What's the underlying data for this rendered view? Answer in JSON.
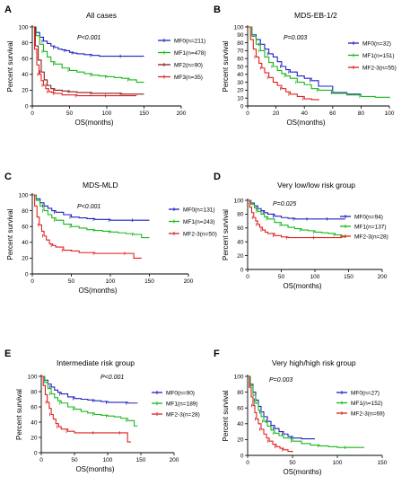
{
  "chart_data": [
    {
      "type": "line",
      "panel": "A",
      "title": "All cases",
      "p_value": "P<0.001",
      "xlabel": "OS(months)",
      "ylabel": "Percent survival",
      "xlim": [
        0,
        200
      ],
      "ylim": [
        0,
        100
      ],
      "xticks": [
        0,
        50,
        100,
        150,
        200
      ],
      "yticks": [
        0,
        20,
        40,
        60,
        80,
        100
      ],
      "grid": false,
      "legend_position": "right",
      "series": [
        {
          "name": "MF0(n=211)",
          "color": "#2020c0",
          "x": [
            0,
            5,
            10,
            15,
            20,
            25,
            30,
            35,
            40,
            45,
            50,
            55,
            60,
            70,
            80,
            90,
            100,
            120,
            140,
            150
          ],
          "y": [
            100,
            93,
            87,
            82,
            79,
            76,
            74,
            72,
            71,
            70,
            68,
            67,
            66,
            65,
            64,
            63,
            63,
            63,
            63,
            63
          ]
        },
        {
          "name": "MF1(n=478)",
          "color": "#18b818",
          "x": [
            0,
            5,
            10,
            15,
            20,
            25,
            30,
            40,
            50,
            60,
            70,
            80,
            90,
            100,
            110,
            120,
            130,
            140,
            150
          ],
          "y": [
            100,
            89,
            78,
            69,
            62,
            56,
            53,
            48,
            45,
            43,
            41,
            39,
            38,
            37,
            36,
            35,
            33,
            30,
            30
          ]
        },
        {
          "name": "MF2(n=90)",
          "color": "#8b1a1a",
          "x": [
            0,
            4,
            8,
            12,
            16,
            20,
            25,
            30,
            40,
            50,
            60,
            80,
            100,
            120,
            140,
            150
          ],
          "y": [
            100,
            76,
            58,
            43,
            33,
            26,
            22,
            20,
            19,
            18,
            17,
            16,
            16,
            15,
            15,
            15
          ]
        },
        {
          "name": "MF3(n=35)",
          "color": "#e02020",
          "x": [
            0,
            3,
            6,
            9,
            12,
            15,
            18,
            22,
            26,
            30,
            40,
            60,
            80,
            100,
            120,
            140
          ],
          "y": [
            100,
            72,
            52,
            40,
            32,
            26,
            22,
            18,
            17,
            16,
            14,
            13,
            13,
            13,
            13,
            13
          ]
        }
      ]
    },
    {
      "type": "line",
      "panel": "B",
      "title": "MDS-EB-1/2",
      "p_value": "P=0.003",
      "xlabel": "OS(months)",
      "ylabel": "Percent survival",
      "xlim": [
        0,
        100
      ],
      "ylim": [
        0,
        100
      ],
      "xticks": [
        0,
        20,
        40,
        60,
        80,
        100
      ],
      "yticks": [
        0,
        10,
        20,
        30,
        40,
        50,
        60,
        70,
        80,
        90,
        100
      ],
      "grid": false,
      "legend_position": "right",
      "series": [
        {
          "name": "MF0(n=32)",
          "color": "#2020c0",
          "x": [
            0,
            3,
            6,
            9,
            12,
            15,
            18,
            21,
            24,
            27,
            30,
            35,
            40,
            45,
            50,
            60,
            70,
            80
          ],
          "y": [
            100,
            90,
            84,
            78,
            72,
            66,
            62,
            56,
            50,
            46,
            43,
            38,
            35,
            32,
            25,
            17,
            15,
            15
          ]
        },
        {
          "name": "MF1(n=151)",
          "color": "#18b818",
          "x": [
            0,
            3,
            6,
            9,
            12,
            15,
            18,
            21,
            24,
            27,
            30,
            35,
            40,
            45,
            50,
            60,
            70,
            80,
            90,
            100
          ],
          "y": [
            100,
            88,
            78,
            70,
            62,
            55,
            50,
            45,
            41,
            38,
            35,
            30,
            27,
            22,
            20,
            16,
            14,
            12,
            11,
            10
          ]
        },
        {
          "name": "MF2-3(n=55)",
          "color": "#e02020",
          "x": [
            0,
            2,
            4,
            6,
            8,
            10,
            12,
            15,
            18,
            21,
            24,
            27,
            30,
            35,
            40,
            45,
            50
          ],
          "y": [
            100,
            84,
            72,
            62,
            54,
            48,
            42,
            36,
            30,
            26,
            22,
            18,
            15,
            12,
            9,
            8,
            7
          ]
        }
      ]
    },
    {
      "type": "line",
      "panel": "C",
      "title": "MDS-MLD",
      "p_value": "P<0.001",
      "xlabel": "OS(months)",
      "ylabel": "Percent survival",
      "xlim": [
        0,
        200
      ],
      "ylim": [
        0,
        100
      ],
      "xticks": [
        0,
        50,
        100,
        150,
        200
      ],
      "yticks": [
        0,
        20,
        40,
        60,
        80,
        100
      ],
      "grid": false,
      "legend_position": "right",
      "series": [
        {
          "name": "MF0(n=131)",
          "color": "#2020c0",
          "x": [
            0,
            5,
            10,
            15,
            20,
            25,
            30,
            40,
            50,
            60,
            70,
            80,
            90,
            100,
            110,
            120,
            130,
            140,
            150
          ],
          "y": [
            100,
            95,
            90,
            86,
            83,
            80,
            78,
            75,
            72,
            71,
            70,
            69,
            69,
            68,
            68,
            68,
            68,
            68,
            68
          ]
        },
        {
          "name": "MF1(n=243)",
          "color": "#18b818",
          "x": [
            0,
            5,
            10,
            15,
            20,
            25,
            30,
            40,
            50,
            60,
            70,
            80,
            90,
            100,
            110,
            120,
            130,
            140,
            150
          ],
          "y": [
            100,
            93,
            86,
            80,
            75,
            71,
            68,
            63,
            60,
            58,
            56,
            55,
            54,
            53,
            52,
            51,
            50,
            46,
            46
          ]
        },
        {
          "name": "MF2-3(n=50)",
          "color": "#e02020",
          "x": [
            0,
            3,
            6,
            9,
            12,
            15,
            18,
            22,
            26,
            30,
            40,
            50,
            60,
            80,
            100,
            120,
            130,
            140
          ],
          "y": [
            100,
            86,
            72,
            62,
            54,
            48,
            43,
            38,
            36,
            34,
            30,
            29,
            27,
            26,
            26,
            26,
            20,
            20
          ]
        }
      ]
    },
    {
      "type": "line",
      "panel": "D",
      "title": "Very low/low risk group",
      "p_value": "P=0.025",
      "xlabel": "OS(months)",
      "ylabel": "Percent survival",
      "xlim": [
        0,
        200
      ],
      "ylim": [
        0,
        100
      ],
      "xticks": [
        0,
        50,
        100,
        150,
        200
      ],
      "yticks": [
        0,
        20,
        40,
        60,
        80,
        100
      ],
      "grid": false,
      "legend_position": "right",
      "series": [
        {
          "name": "MF0(n=94)",
          "color": "#2020c0",
          "x": [
            0,
            5,
            10,
            15,
            20,
            25,
            30,
            40,
            50,
            60,
            70,
            80,
            90,
            100,
            120,
            140,
            145
          ],
          "y": [
            100,
            96,
            92,
            88,
            85,
            82,
            80,
            77,
            75,
            74,
            73,
            73,
            73,
            73,
            73,
            73,
            73
          ]
        },
        {
          "name": "MF1(n=137)",
          "color": "#18b818",
          "x": [
            0,
            5,
            10,
            15,
            20,
            25,
            30,
            40,
            50,
            60,
            70,
            80,
            90,
            100,
            110,
            120,
            130,
            140,
            145
          ],
          "y": [
            100,
            94,
            89,
            84,
            80,
            76,
            73,
            68,
            64,
            61,
            59,
            57,
            56,
            54,
            53,
            52,
            50,
            47,
            47
          ]
        },
        {
          "name": "MF2-3(n=28)",
          "color": "#e02020",
          "x": [
            0,
            3,
            6,
            9,
            12,
            15,
            18,
            22,
            26,
            30,
            40,
            50,
            60,
            80,
            100,
            120,
            140
          ],
          "y": [
            100,
            90,
            82,
            75,
            70,
            65,
            61,
            57,
            54,
            52,
            49,
            47,
            46,
            46,
            46,
            46,
            46
          ]
        }
      ]
    },
    {
      "type": "line",
      "panel": "E",
      "title": "Intermediate risk group",
      "p_value": "P<0.001",
      "xlabel": "OS(months)",
      "ylabel": "Percent survival",
      "xlim": [
        0,
        200
      ],
      "ylim": [
        0,
        100
      ],
      "xticks": [
        0,
        50,
        100,
        150,
        200
      ],
      "yticks": [
        0,
        20,
        40,
        60,
        80,
        100
      ],
      "grid": false,
      "legend_position": "right",
      "series": [
        {
          "name": "MF0(n=90)",
          "color": "#2020c0",
          "x": [
            0,
            5,
            10,
            15,
            20,
            25,
            30,
            40,
            50,
            60,
            70,
            80,
            90,
            100,
            110,
            120,
            130,
            140,
            145
          ],
          "y": [
            100,
            95,
            90,
            86,
            82,
            79,
            77,
            73,
            71,
            70,
            69,
            68,
            67,
            66,
            66,
            66,
            65,
            65,
            65
          ]
        },
        {
          "name": "MF1(n=189)",
          "color": "#18b818",
          "x": [
            0,
            5,
            10,
            15,
            20,
            25,
            30,
            40,
            50,
            60,
            70,
            80,
            90,
            100,
            110,
            120,
            130,
            140,
            145
          ],
          "y": [
            100,
            92,
            84,
            77,
            72,
            68,
            65,
            60,
            57,
            54,
            52,
            50,
            49,
            48,
            47,
            45,
            42,
            35,
            35
          ]
        },
        {
          "name": "MF2-3(n=28)",
          "color": "#e02020",
          "x": [
            0,
            3,
            6,
            9,
            12,
            15,
            18,
            22,
            26,
            30,
            40,
            50,
            60,
            80,
            100,
            120,
            130,
            135
          ],
          "y": [
            100,
            88,
            76,
            66,
            58,
            50,
            44,
            38,
            34,
            31,
            28,
            26,
            26,
            26,
            26,
            26,
            14,
            14
          ]
        }
      ]
    },
    {
      "type": "line",
      "panel": "F",
      "title": "Very high/high risk group",
      "p_value": "P=0.003",
      "xlabel": "OS(months)",
      "ylabel": "Percent survival",
      "xlim": [
        0,
        150
      ],
      "ylim": [
        0,
        100
      ],
      "xticks": [
        0,
        50,
        100,
        150
      ],
      "yticks": [
        0,
        20,
        40,
        60,
        80,
        100
      ],
      "grid": false,
      "legend_position": "right",
      "series": [
        {
          "name": "MF0(n=27)",
          "color": "#2020c0",
          "x": [
            0,
            3,
            6,
            9,
            12,
            15,
            18,
            22,
            26,
            30,
            35,
            40,
            45,
            50,
            60,
            75
          ],
          "y": [
            100,
            90,
            80,
            70,
            62,
            55,
            49,
            43,
            38,
            34,
            30,
            27,
            24,
            22,
            21,
            21
          ]
        },
        {
          "name": "MF1(n=152)",
          "color": "#18b818",
          "x": [
            0,
            3,
            6,
            9,
            12,
            15,
            18,
            22,
            26,
            30,
            35,
            40,
            50,
            60,
            70,
            80,
            90,
            100,
            110,
            120,
            130
          ],
          "y": [
            100,
            88,
            76,
            66,
            57,
            49,
            43,
            37,
            32,
            28,
            25,
            22,
            18,
            15,
            13,
            12,
            11,
            10,
            10,
            10,
            10
          ]
        },
        {
          "name": "MF2-3(n=69)",
          "color": "#e02020",
          "x": [
            0,
            2,
            4,
            6,
            8,
            10,
            12,
            15,
            18,
            21,
            24,
            28,
            32,
            36,
            40,
            45,
            50
          ],
          "y": [
            100,
            86,
            74,
            63,
            54,
            46,
            40,
            33,
            27,
            22,
            18,
            14,
            11,
            9,
            7,
            5,
            4
          ]
        }
      ]
    }
  ]
}
